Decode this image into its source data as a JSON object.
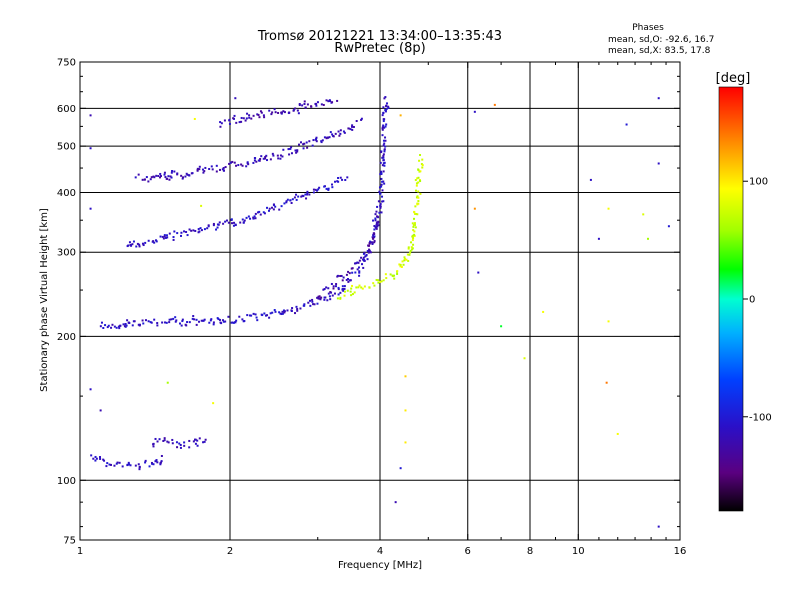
{
  "header": {
    "title": "Tromsø 20121221 13:34:00–13:35:43",
    "subtitle": "RwPretec (8p)"
  },
  "phase_stats": {
    "heading": "Phases",
    "line_o": "mean, sd,O: -92.6, 16.7",
    "line_x": "mean, sd,X: 83.5, 17.8"
  },
  "chart_data": {
    "type": "scatter",
    "xlabel": "Frequency [MHz]",
    "ylabel": "Stationary phase Virtual Height [km]",
    "x_scale": "log",
    "y_scale": "log",
    "xlim": [
      1,
      16
    ],
    "ylim": [
      75,
      750
    ],
    "x_ticks": [
      1,
      2,
      4,
      6,
      8,
      10,
      16
    ],
    "x_tick_labels": [
      "1",
      "2",
      "4",
      "6",
      "8",
      "10",
      "16"
    ],
    "y_ticks": [
      75,
      100,
      200,
      300,
      400,
      500,
      600,
      750
    ],
    "y_tick_labels": [
      "75",
      "100",
      "200",
      "300",
      "400",
      "500",
      "600",
      "750"
    ],
    "x_gridlines": [
      2,
      4,
      6,
      8,
      10
    ],
    "y_gridlines": [
      100,
      200,
      300,
      400,
      500,
      600
    ],
    "colorbar": {
      "label": "[deg]",
      "range": [
        -180,
        180
      ],
      "ticks": [
        -100,
        0,
        100
      ],
      "tick_labels": [
        "-100",
        "0",
        "100"
      ]
    },
    "traces": [
      {
        "phase_deg": -110,
        "points": [
          [
            1.05,
            112
          ],
          [
            1.1,
            110
          ],
          [
            1.15,
            108
          ],
          [
            1.2,
            108
          ],
          [
            1.3,
            108
          ],
          [
            1.4,
            108
          ],
          [
            1.45,
            109
          ],
          [
            1.48,
            112
          ]
        ]
      },
      {
        "phase_deg": -115,
        "points": [
          [
            1.4,
            120
          ],
          [
            1.45,
            122
          ],
          [
            1.6,
            118
          ],
          [
            1.7,
            120
          ],
          [
            1.8,
            121
          ]
        ]
      },
      {
        "phase_deg": -110,
        "points": [
          [
            1.1,
            212
          ],
          [
            1.15,
            210
          ],
          [
            1.25,
            212
          ],
          [
            1.35,
            213
          ],
          [
            1.5,
            214
          ],
          [
            1.7,
            214
          ],
          [
            1.9,
            215
          ],
          [
            2.1,
            218
          ],
          [
            2.4,
            222
          ],
          [
            2.7,
            228
          ],
          [
            3.0,
            236
          ],
          [
            3.2,
            244
          ],
          [
            3.4,
            255
          ],
          [
            3.6,
            272
          ],
          [
            3.8,
            300
          ],
          [
            3.9,
            330
          ],
          [
            4.0,
            380
          ],
          [
            4.05,
            450
          ],
          [
            4.08,
            550
          ],
          [
            4.1,
            640
          ]
        ]
      },
      {
        "phase_deg": -110,
        "points": [
          [
            1.25,
            310
          ],
          [
            1.35,
            315
          ],
          [
            1.5,
            325
          ],
          [
            1.7,
            332
          ],
          [
            2.0,
            345
          ],
          [
            2.3,
            360
          ],
          [
            2.6,
            380
          ],
          [
            2.9,
            398
          ],
          [
            3.2,
            415
          ],
          [
            3.45,
            432
          ]
        ]
      },
      {
        "phase_deg": -118,
        "points": [
          [
            1.3,
            430
          ],
          [
            1.45,
            432
          ],
          [
            1.6,
            437
          ],
          [
            1.8,
            445
          ],
          [
            2.0,
            455
          ],
          [
            2.3,
            468
          ],
          [
            2.6,
            485
          ],
          [
            2.9,
            505
          ],
          [
            3.2,
            528
          ],
          [
            3.5,
            550
          ],
          [
            3.7,
            565
          ]
        ]
      },
      {
        "phase_deg": -122,
        "points": [
          [
            1.9,
            555
          ],
          [
            2.0,
            565
          ],
          [
            2.2,
            578
          ],
          [
            2.5,
            590
          ],
          [
            2.8,
            605
          ],
          [
            3.1,
            615
          ],
          [
            3.3,
            625
          ]
        ]
      },
      {
        "phase_deg": -125,
        "points": [
          [
            3.0,
            240
          ],
          [
            3.2,
            255
          ],
          [
            3.4,
            270
          ],
          [
            3.6,
            285
          ],
          [
            3.8,
            300
          ],
          [
            3.9,
            320
          ],
          [
            3.95,
            360
          ]
        ]
      },
      {
        "phase_deg": 75,
        "points": [
          [
            3.3,
            240
          ],
          [
            3.5,
            248
          ],
          [
            3.7,
            253
          ],
          [
            3.9,
            258
          ],
          [
            4.1,
            264
          ],
          [
            4.3,
            272
          ],
          [
            4.5,
            285
          ],
          [
            4.6,
            305
          ],
          [
            4.7,
            340
          ],
          [
            4.75,
            390
          ],
          [
            4.8,
            440
          ],
          [
            4.85,
            478
          ]
        ]
      }
    ],
    "scattered_points": [
      {
        "x": 1.05,
        "y": 580,
        "phase_deg": -120
      },
      {
        "x": 1.05,
        "y": 495,
        "phase_deg": -110
      },
      {
        "x": 1.05,
        "y": 370,
        "phase_deg": -110
      },
      {
        "x": 1.05,
        "y": 155,
        "phase_deg": -110
      },
      {
        "x": 1.1,
        "y": 140,
        "phase_deg": -120
      },
      {
        "x": 1.5,
        "y": 160,
        "phase_deg": 60
      },
      {
        "x": 1.85,
        "y": 145,
        "phase_deg": 90
      },
      {
        "x": 2.05,
        "y": 630,
        "phase_deg": -115
      },
      {
        "x": 1.7,
        "y": 570,
        "phase_deg": 90
      },
      {
        "x": 1.75,
        "y": 375,
        "phase_deg": 80
      },
      {
        "x": 4.4,
        "y": 580,
        "phase_deg": 120
      },
      {
        "x": 4.5,
        "y": 165,
        "phase_deg": 110
      },
      {
        "x": 4.5,
        "y": 140,
        "phase_deg": 100
      },
      {
        "x": 4.5,
        "y": 120,
        "phase_deg": 100
      },
      {
        "x": 4.3,
        "y": 90,
        "phase_deg": -120
      },
      {
        "x": 4.4,
        "y": 106,
        "phase_deg": -100
      },
      {
        "x": 6.2,
        "y": 590,
        "phase_deg": -110
      },
      {
        "x": 6.2,
        "y": 370,
        "phase_deg": 130
      },
      {
        "x": 6.3,
        "y": 272,
        "phase_deg": -110
      },
      {
        "x": 6.8,
        "y": 610,
        "phase_deg": 140
      },
      {
        "x": 7.0,
        "y": 210,
        "phase_deg": 20
      },
      {
        "x": 7.8,
        "y": 180,
        "phase_deg": 80
      },
      {
        "x": 8.5,
        "y": 225,
        "phase_deg": 90
      },
      {
        "x": 10.6,
        "y": 425,
        "phase_deg": -110
      },
      {
        "x": 11.0,
        "y": 320,
        "phase_deg": -110
      },
      {
        "x": 11.5,
        "y": 370,
        "phase_deg": 90
      },
      {
        "x": 11.5,
        "y": 215,
        "phase_deg": 90
      },
      {
        "x": 11.4,
        "y": 160,
        "phase_deg": 140
      },
      {
        "x": 12.5,
        "y": 555,
        "phase_deg": -100
      },
      {
        "x": 13.5,
        "y": 360,
        "phase_deg": 80
      },
      {
        "x": 13.8,
        "y": 320,
        "phase_deg": 60
      },
      {
        "x": 14.5,
        "y": 630,
        "phase_deg": -110
      },
      {
        "x": 14.5,
        "y": 460,
        "phase_deg": -110
      },
      {
        "x": 14.5,
        "y": 80,
        "phase_deg": -110
      },
      {
        "x": 15.2,
        "y": 340,
        "phase_deg": -100
      },
      {
        "x": 12.0,
        "y": 125,
        "phase_deg": 90
      }
    ]
  }
}
